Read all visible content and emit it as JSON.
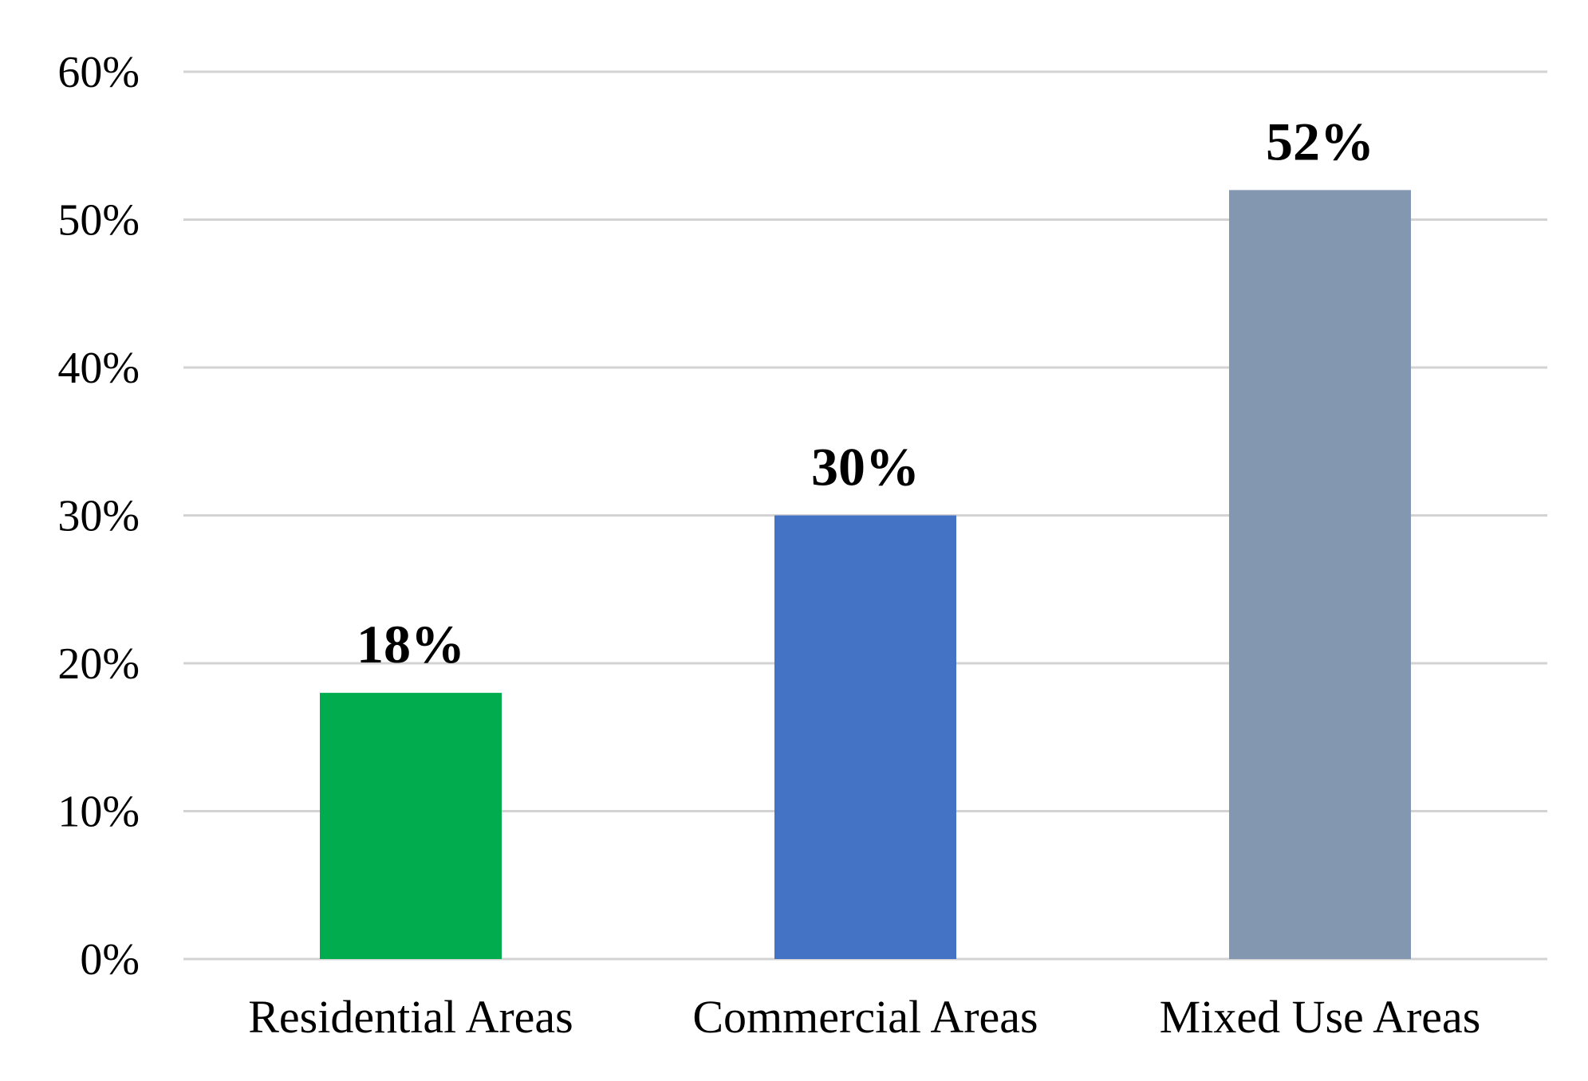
{
  "chart_data": {
    "type": "bar",
    "title": "",
    "xlabel": "",
    "ylabel": "",
    "categories": [
      "Residential Areas",
      "Commercial Areas",
      "Mixed Use Areas"
    ],
    "values": [
      18,
      30,
      52
    ],
    "data_labels": [
      "18%",
      "30%",
      "52%"
    ],
    "colors": [
      "#00ac4e",
      "#4472c4",
      "#8497b0"
    ],
    "ylim": [
      0,
      60
    ],
    "yticks": [
      0,
      10,
      20,
      30,
      40,
      50,
      60
    ],
    "ytick_labels": [
      "0%",
      "10%",
      "20%",
      "30%",
      "40%",
      "50%",
      "60%"
    ],
    "grid": true,
    "legend": "none"
  }
}
